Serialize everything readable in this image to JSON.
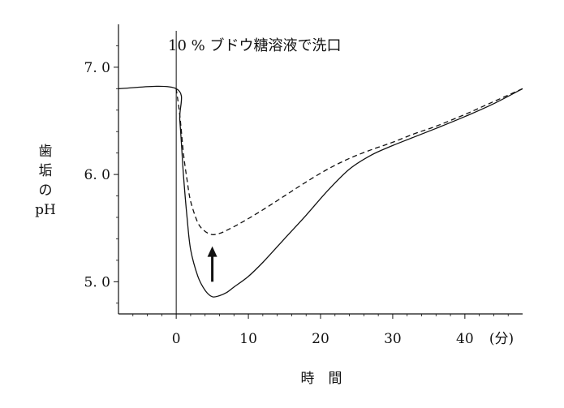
{
  "chart_data": {
    "type": "line",
    "annotation": "10 % ブドウ糖溶液で洗口",
    "ylabel_lines": [
      "歯",
      "垢",
      "の",
      "pH"
    ],
    "xlabel": "時　間",
    "x_unit": "(分)",
    "x_ticks": [
      0,
      10,
      20,
      30,
      40
    ],
    "x_tick_labels": [
      "0",
      "10",
      "20",
      "30",
      "40"
    ],
    "y_ticks": [
      5.0,
      6.0,
      7.0
    ],
    "y_tick_labels": [
      "5. 0",
      "6. 0",
      "7. 0"
    ],
    "xlim": [
      -8,
      48
    ],
    "ylim": [
      4.7,
      7.4
    ],
    "event_x": 0,
    "arrow": {
      "x": 5,
      "from_y": 5.0,
      "to_y": 5.3
    },
    "series": [
      {
        "style": "solid",
        "x": [
          -8,
          0,
          0.5,
          1,
          1.5,
          2,
          3,
          4,
          5,
          6,
          7,
          8,
          10,
          12,
          15,
          18,
          21,
          24,
          27,
          30,
          33,
          36,
          40,
          44,
          48
        ],
        "y": [
          6.8,
          6.8,
          6.5,
          6.0,
          5.6,
          5.3,
          5.05,
          4.92,
          4.86,
          4.87,
          4.9,
          4.95,
          5.05,
          5.18,
          5.4,
          5.62,
          5.85,
          6.05,
          6.18,
          6.27,
          6.35,
          6.43,
          6.54,
          6.66,
          6.8
        ]
      },
      {
        "style": "dashed",
        "x": [
          0,
          0.5,
          1,
          1.5,
          2,
          3,
          4,
          5,
          6,
          7,
          9,
          12,
          15,
          18,
          21,
          24,
          27,
          30,
          33,
          36,
          40,
          44,
          48
        ],
        "y": [
          6.8,
          6.55,
          6.2,
          5.95,
          5.75,
          5.55,
          5.47,
          5.44,
          5.45,
          5.48,
          5.55,
          5.67,
          5.8,
          5.93,
          6.05,
          6.15,
          6.23,
          6.3,
          6.38,
          6.45,
          6.56,
          6.68,
          6.8
        ]
      }
    ]
  }
}
